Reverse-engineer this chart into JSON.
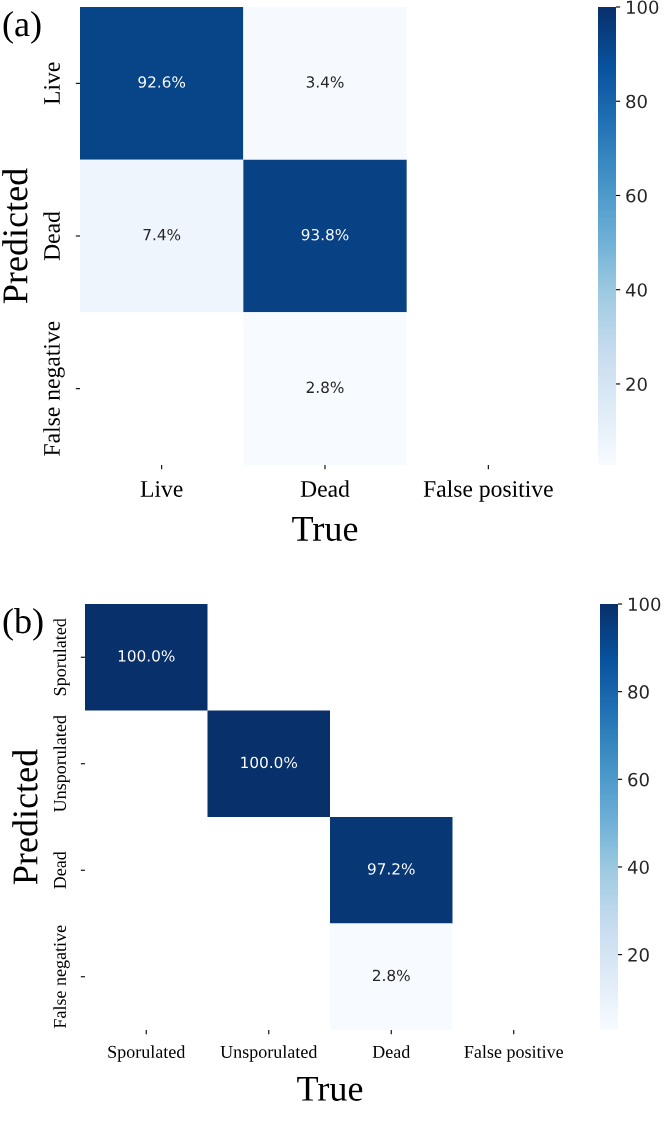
{
  "chart_data": [
    {
      "type": "heatmap",
      "title": "(a)",
      "xlabel": "True",
      "ylabel": "Predicted",
      "categories": [
        "Live",
        "Dead",
        "False positive"
      ],
      "y_categories": [
        "Live",
        "Dead",
        "False negative"
      ],
      "cells": [
        [
          92.6,
          3.4,
          null
        ],
        [
          7.4,
          93.8,
          null
        ],
        [
          null,
          2.8,
          null
        ]
      ],
      "cell_labels": [
        [
          "92.6%",
          "3.4%",
          null
        ],
        [
          "7.4%",
          "93.8%",
          null
        ],
        [
          null,
          "2.8%",
          null
        ]
      ],
      "clim": [
        2.8,
        100
      ],
      "cticks": [
        20,
        40,
        60,
        80,
        100
      ]
    },
    {
      "type": "heatmap",
      "title": "(b)",
      "xlabel": "True",
      "ylabel": "Predicted",
      "categories": [
        "Sporulated",
        "Unsporulated",
        "Dead",
        "False positive"
      ],
      "y_categories": [
        "Sporulated",
        "Unsporulated",
        "Dead",
        "False negative"
      ],
      "cells": [
        [
          100.0,
          null,
          null,
          null
        ],
        [
          null,
          100.0,
          null,
          null
        ],
        [
          null,
          null,
          97.2,
          null
        ],
        [
          null,
          null,
          2.8,
          null
        ]
      ],
      "cell_labels": [
        [
          "100.0%",
          null,
          null,
          null
        ],
        [
          null,
          "100.0%",
          null,
          null
        ],
        [
          null,
          null,
          "97.2%",
          null
        ],
        [
          null,
          null,
          "2.8%",
          null
        ]
      ],
      "clim": [
        2.8,
        100
      ],
      "cticks": [
        20,
        40,
        60,
        80,
        100
      ]
    }
  ]
}
